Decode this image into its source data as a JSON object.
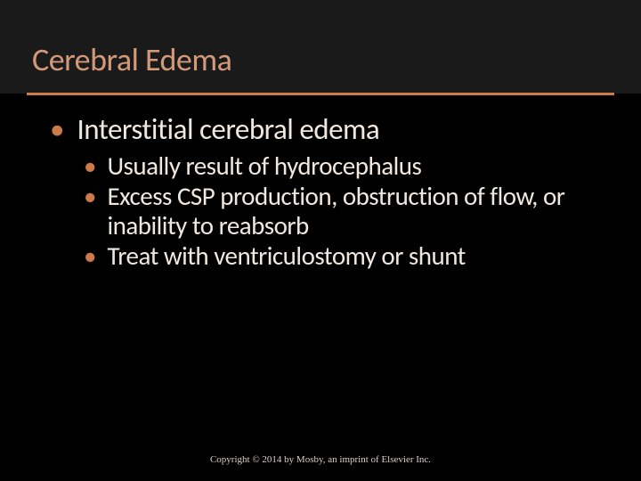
{
  "slide": {
    "background_color": "#000000",
    "title_bg_color": "#1a1a1a",
    "title": "Cerebral Edema",
    "title_color": "#d49978",
    "title_fontsize": 36,
    "divider_color": "#cc7a4a",
    "bullet_color": "#cc7a4a",
    "text_color": "#f0e8e0",
    "level1": [
      {
        "text": "Interstitial cerebral edema"
      }
    ],
    "level2": [
      {
        "text": "Usually result of  hydrocephalus"
      },
      {
        "text": "Excess CSP production, obstruction of flow, or inability to reabsorb"
      },
      {
        "text": "Treat with ventriculostomy or shunt"
      }
    ],
    "level1_fontsize": 33,
    "level2_fontsize": 29,
    "footer": "Copyright © 2014 by Mosby, an imprint of Elsevier Inc.",
    "footer_color": "#d8d0c8",
    "footer_fontsize": 11
  }
}
